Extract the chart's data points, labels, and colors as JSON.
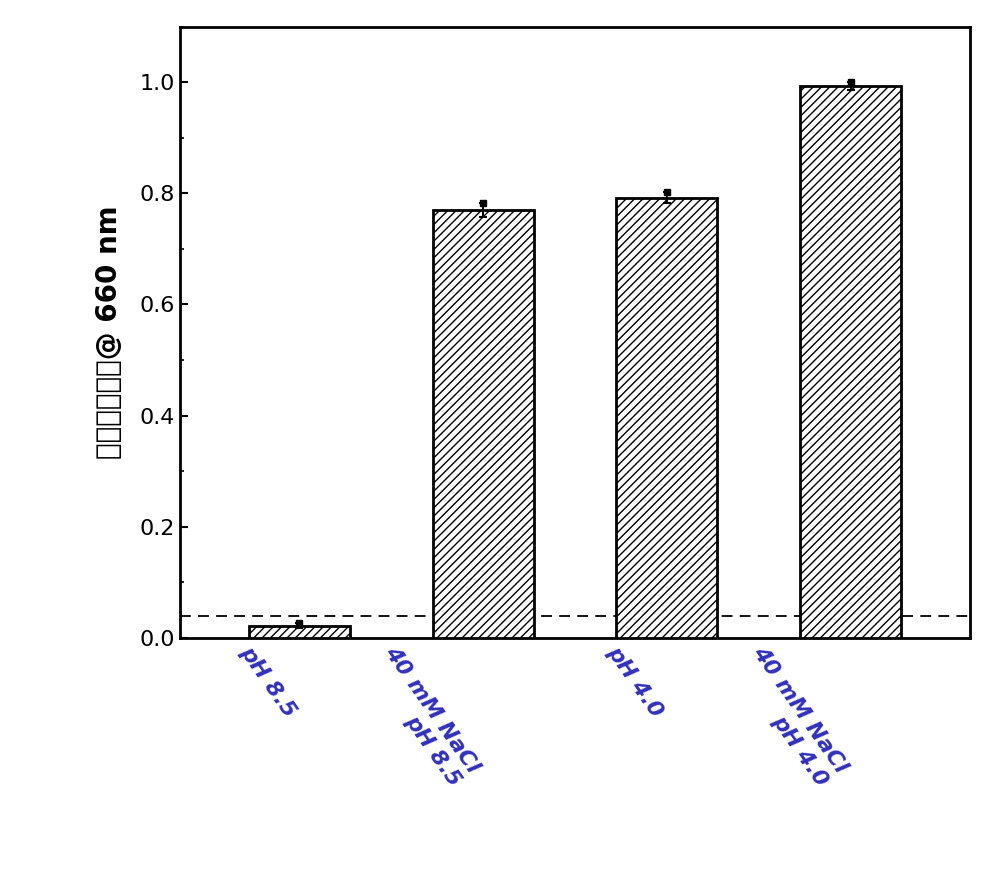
{
  "categories": [
    "pH 8.5",
    "40 mM NaCl\npH 8.5",
    "pH 4.0",
    "40 mM NaCl\npH 4.0"
  ],
  "values": [
    0.022,
    0.77,
    0.792,
    0.993
  ],
  "errors": [
    0.005,
    0.012,
    0.01,
    0.008
  ],
  "ylabel_lines": [
    "归一化吸光度@ 660 nm"
  ],
  "ylim": [
    0.0,
    1.1
  ],
  "yticks": [
    0.0,
    0.2,
    0.4,
    0.6,
    0.8,
    1.0
  ],
  "bar_width": 0.55,
  "hatch_pattern": "////",
  "bar_facecolor": "white",
  "bar_edgecolor": "black",
  "error_color": "black",
  "threshold_line": 0.04,
  "background_color": "white",
  "figure_width": 10.0,
  "figure_height": 8.86,
  "tick_label_fontsize": 16,
  "ylabel_fontsize": 20,
  "xlabel_color": "#3030bb",
  "xlabel_rotation": -55
}
